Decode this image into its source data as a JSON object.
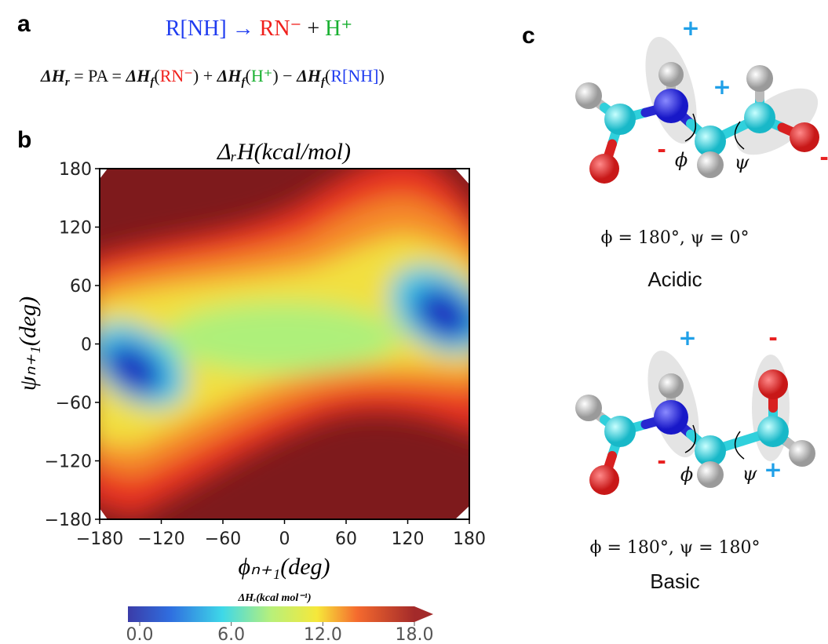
{
  "panel_a": {
    "label": "a",
    "reaction": [
      "R[NH] → ",
      "RN⁻",
      " + ",
      "H⁺"
    ],
    "equation": [
      "ΔH",
      "r",
      " = PA = ",
      "ΔH",
      "f",
      "(",
      "RN⁻",
      ") + ",
      "ΔH",
      "f",
      "(",
      "H⁺",
      ") − ",
      "ΔH",
      "f",
      "(",
      "R[NH]",
      ")"
    ]
  },
  "panel_b": {
    "label": "b"
  },
  "chart_data": {
    "type": "contour",
    "title": "ΔᵣH(kcal/mol)",
    "xlabel": "ϕₙ₊₁(deg)",
    "ylabel": "ψₙ₊₁(deg)",
    "xlim": [
      -180,
      180
    ],
    "ylim": [
      -180,
      180
    ],
    "xticks": [
      {
        "value": -180,
        "label": "−180"
      },
      {
        "value": -120,
        "label": "−120"
      },
      {
        "value": -60,
        "label": "−60"
      },
      0,
      60,
      120,
      180
    ],
    "yticks": [
      {
        "value": -180,
        "label": "−180"
      },
      {
        "value": -120,
        "label": "−120"
      },
      {
        "value": -60,
        "label": "−60"
      },
      0,
      60,
      120,
      180
    ],
    "colorbar": {
      "label": "ΔHᵣ(kcal mol⁻¹)",
      "lim": [
        0,
        18
      ],
      "ticks": [
        {
          "value": 0,
          "label": "0.0"
        },
        {
          "value": 6,
          "label": "6.0"
        },
        {
          "value": 12,
          "label": "12.0"
        },
        {
          "value": 18,
          "label": "18.0"
        }
      ]
    }
  },
  "panel_c": {
    "label": "c",
    "molecules": [
      {
        "annotations": [
          "+",
          "+",
          "-",
          "-",
          "ϕ",
          "ψ"
        ],
        "angles": "ϕ = 180°, ψ = 0°",
        "name": "Acidic"
      },
      {
        "annotations": [
          "+",
          "-",
          "-",
          "+",
          "ϕ",
          "ψ"
        ],
        "angles": "ϕ = 180°, ψ = 180°",
        "name": "Basic"
      }
    ]
  }
}
